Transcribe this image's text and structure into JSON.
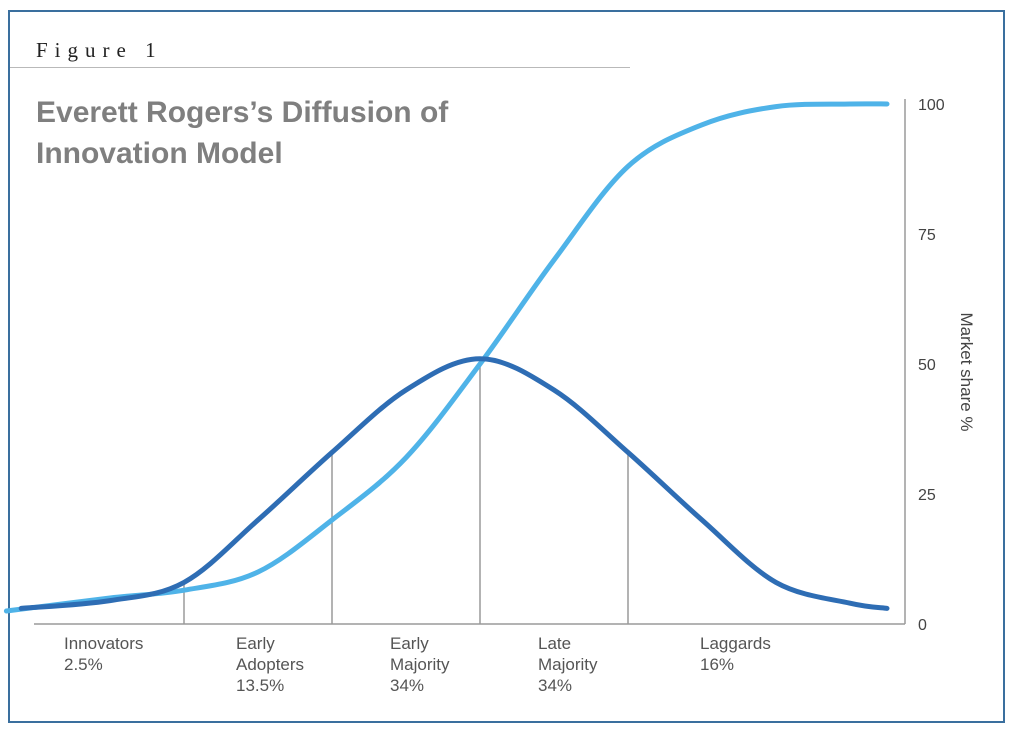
{
  "figure_label": "Figure 1",
  "chart_data": {
    "type": "line",
    "title": "Everett Rogers’s Diffusion of Innovation Model",
    "ylabel": "Market share %",
    "xlabel": "",
    "ylim": [
      0,
      100
    ],
    "yticks": [
      0,
      25,
      50,
      75,
      100
    ],
    "y_axis_side": "right",
    "grid": false,
    "categories": [
      {
        "name": "Innovators",
        "share": "2.5%"
      },
      {
        "name": "Early\nAdopters",
        "share": "13.5%"
      },
      {
        "name": "Early\nMajority",
        "share": "34%"
      },
      {
        "name": "Late\nMajority",
        "share": "34%"
      },
      {
        "name": "Laggards",
        "share": "16%"
      }
    ],
    "boundaries": [
      {
        "x": -2,
        "y": 8
      },
      {
        "x": -1,
        "y": 33
      },
      {
        "x": 0,
        "y": 51
      },
      {
        "x": 1,
        "y": 33
      }
    ],
    "series": [
      {
        "kind": "adoption-curve",
        "color": "#2e6db4",
        "x": [
          -3.1,
          -2.5,
          -2,
          -1.5,
          -1,
          -0.5,
          0,
          0.5,
          1,
          1.5,
          2,
          2.5,
          2.75
        ],
        "values": [
          3,
          4.5,
          8,
          20,
          33,
          45,
          51,
          45,
          33,
          20,
          8,
          4,
          3
        ]
      },
      {
        "kind": "market-share-curve",
        "color": "#4fb3e8",
        "x": [
          -3.2,
          -2.5,
          -2,
          -1.5,
          -1,
          -0.5,
          0,
          0.5,
          1,
          1.5,
          2,
          2.5,
          2.75
        ],
        "values": [
          2.5,
          5,
          6.5,
          10,
          20,
          32,
          50,
          70,
          88,
          96,
          99.5,
          100,
          100
        ]
      }
    ]
  }
}
